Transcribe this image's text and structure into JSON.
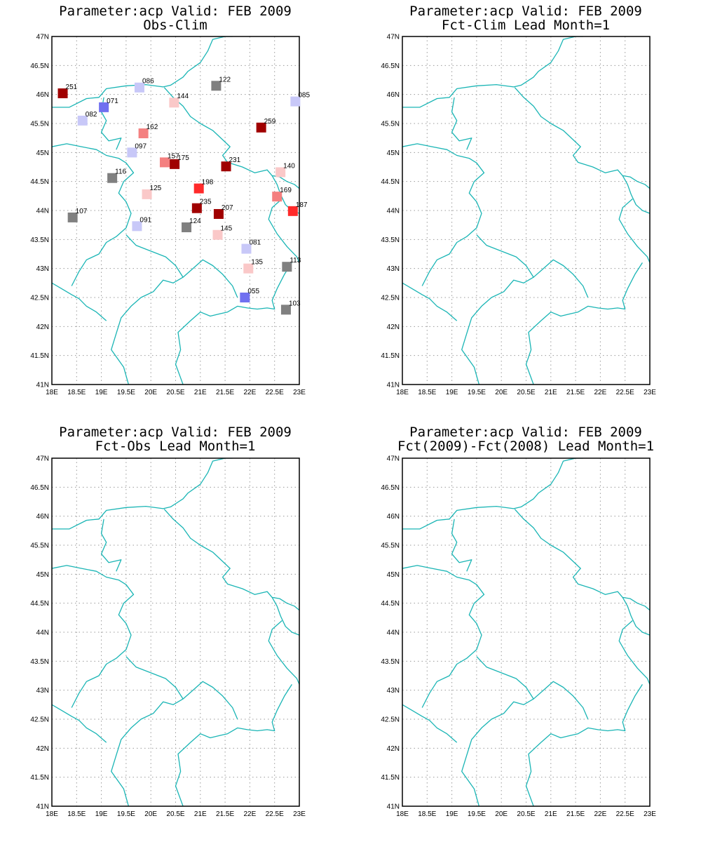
{
  "colors": {
    "border_line": "#1ab5b5",
    "frame": "#000000",
    "grid": "#9a9a9a",
    "dark_red": "#a00000",
    "red": "#ff2a2a",
    "light_red": "#f48080",
    "pale_red": "#fac8c8",
    "grey": "#808080",
    "pale_blue": "#c8c8f8",
    "blue": "#7070f0"
  },
  "map_extent": {
    "lon_range": [
      18,
      23
    ],
    "lat_range": [
      41,
      47
    ]
  },
  "lon_ticks": [
    "18E",
    "18.5E",
    "19E",
    "19.5E",
    "20E",
    "20.5E",
    "21E",
    "21.5E",
    "22E",
    "22.5E",
    "23E"
  ],
  "lat_ticks": [
    "41N",
    "41.5N",
    "42N",
    "42.5N",
    "43N",
    "43.5N",
    "44N",
    "44.5N",
    "45N",
    "45.5N",
    "46N",
    "46.5N",
    "47N"
  ],
  "panels": [
    {
      "title_line1": "Parameter:acp Valid: FEB 2009",
      "title_line2": "Obs-Clim"
    },
    {
      "title_line1": "Parameter:acp Valid: FEB 2009",
      "title_line2": "Fct-Clim Lead Month=1"
    },
    {
      "title_line1": "Parameter:acp Valid: FEB 2009",
      "title_line2": "Fct-Obs Lead Month=1"
    },
    {
      "title_line1": "Parameter:acp Valid: FEB 2009",
      "title_line2": "Fct(2009)-Fct(2008) Lead Month=1"
    }
  ],
  "stations": [
    {
      "label": "251",
      "lon": 18.22,
      "lat": 46.02,
      "color": "dark_red"
    },
    {
      "label": "086",
      "lon": 19.77,
      "lat": 46.12,
      "color": "pale_blue"
    },
    {
      "label": "122",
      "lon": 21.32,
      "lat": 46.15,
      "color": "grey"
    },
    {
      "label": "085",
      "lon": 22.92,
      "lat": 45.88,
      "color": "pale_blue"
    },
    {
      "label": "071",
      "lon": 19.05,
      "lat": 45.78,
      "color": "blue"
    },
    {
      "label": "144",
      "lon": 20.47,
      "lat": 45.86,
      "color": "pale_red"
    },
    {
      "label": "082",
      "lon": 18.62,
      "lat": 45.55,
      "color": "pale_blue"
    },
    {
      "label": "162",
      "lon": 19.85,
      "lat": 45.33,
      "color": "light_red"
    },
    {
      "label": "259",
      "lon": 22.23,
      "lat": 45.43,
      "color": "dark_red"
    },
    {
      "label": "097",
      "lon": 19.62,
      "lat": 45.0,
      "color": "pale_blue"
    },
    {
      "label": "157",
      "lon": 20.28,
      "lat": 44.83,
      "color": "light_red"
    },
    {
      "label": "175",
      "lon": 20.48,
      "lat": 44.8,
      "color": "dark_red"
    },
    {
      "label": "231",
      "lon": 21.52,
      "lat": 44.76,
      "color": "dark_red"
    },
    {
      "label": "140",
      "lon": 22.62,
      "lat": 44.66,
      "color": "pale_red"
    },
    {
      "label": "116",
      "lon": 19.22,
      "lat": 44.56,
      "color": "grey"
    },
    {
      "label": "125",
      "lon": 19.92,
      "lat": 44.28,
      "color": "pale_red"
    },
    {
      "label": "198",
      "lon": 20.97,
      "lat": 44.38,
      "color": "red"
    },
    {
      "label": "169",
      "lon": 22.55,
      "lat": 44.24,
      "color": "light_red"
    },
    {
      "label": "235",
      "lon": 20.93,
      "lat": 44.04,
      "color": "dark_red"
    },
    {
      "label": "207",
      "lon": 21.37,
      "lat": 43.94,
      "color": "dark_red"
    },
    {
      "label": "187",
      "lon": 22.87,
      "lat": 43.99,
      "color": "red"
    },
    {
      "label": "107",
      "lon": 18.42,
      "lat": 43.88,
      "color": "grey"
    },
    {
      "label": "091",
      "lon": 19.72,
      "lat": 43.73,
      "color": "pale_blue"
    },
    {
      "label": "124",
      "lon": 20.72,
      "lat": 43.71,
      "color": "grey"
    },
    {
      "label": "145",
      "lon": 21.35,
      "lat": 43.58,
      "color": "pale_red"
    },
    {
      "label": "081",
      "lon": 21.93,
      "lat": 43.34,
      "color": "pale_blue"
    },
    {
      "label": "113",
      "lon": 22.75,
      "lat": 43.03,
      "color": "grey"
    },
    {
      "label": "135",
      "lon": 21.97,
      "lat": 43.0,
      "color": "pale_red"
    },
    {
      "label": "055",
      "lon": 21.9,
      "lat": 42.5,
      "color": "blue"
    },
    {
      "label": "103",
      "lon": 22.73,
      "lat": 42.29,
      "color": "grey"
    }
  ]
}
